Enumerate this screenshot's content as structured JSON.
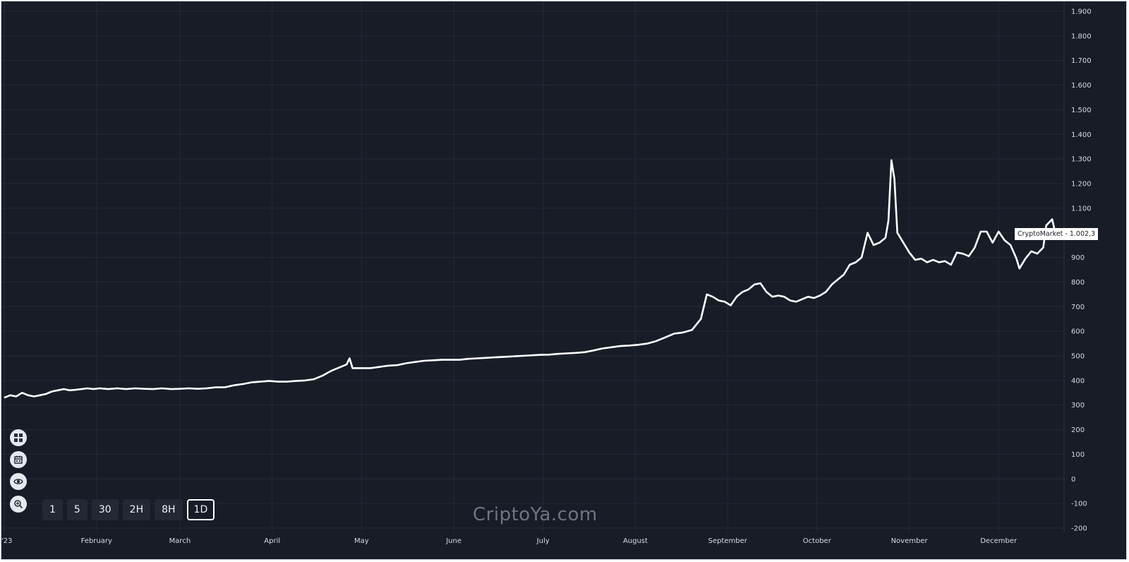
{
  "chart_data": {
    "type": "line",
    "title": "",
    "xlabel": "",
    "ylabel": "",
    "grid": true,
    "ylim": [
      -200,
      1900
    ],
    "y_ticks": [
      -200,
      -100,
      0,
      100,
      200,
      300,
      400,
      500,
      600,
      700,
      800,
      900,
      1000,
      1100,
      1200,
      1300,
      1400,
      1500,
      1600,
      1700,
      1800,
      1900
    ],
    "y_tick_labels": [
      "-200",
      "-100",
      "0",
      "100",
      "200",
      "300",
      "400",
      "500",
      "600",
      "700",
      "800",
      "900",
      "1.000",
      "1.100",
      "1.200",
      "1.300",
      "1.400",
      "1.500",
      "1.600",
      "1.700",
      "1.800",
      "1.900"
    ],
    "x_tick_labels": [
      "'23",
      "February",
      "March",
      "April",
      "May",
      "June",
      "July",
      "August",
      "September",
      "October",
      "November",
      "December"
    ],
    "x_tick_dates": [
      "2023-01-01",
      "2023-02-01",
      "2023-03-01",
      "2023-04-01",
      "2023-05-01",
      "2023-06-01",
      "2023-07-01",
      "2023-08-01",
      "2023-09-01",
      "2023-10-01",
      "2023-11-01",
      "2023-12-01"
    ],
    "series": [
      {
        "name": "CryptoMarket",
        "color": "#ffffff",
        "points": [
          [
            "2023-01-01",
            330
          ],
          [
            "2023-01-03",
            340
          ],
          [
            "2023-01-05",
            335
          ],
          [
            "2023-01-07",
            350
          ],
          [
            "2023-01-09",
            340
          ],
          [
            "2023-01-11",
            335
          ],
          [
            "2023-01-13",
            340
          ],
          [
            "2023-01-15",
            345
          ],
          [
            "2023-01-17",
            355
          ],
          [
            "2023-01-19",
            360
          ],
          [
            "2023-01-21",
            365
          ],
          [
            "2023-01-23",
            360
          ],
          [
            "2023-01-25",
            362
          ],
          [
            "2023-01-27",
            365
          ],
          [
            "2023-01-29",
            368
          ],
          [
            "2023-01-31",
            365
          ],
          [
            "2023-02-02",
            368
          ],
          [
            "2023-02-05",
            365
          ],
          [
            "2023-02-08",
            368
          ],
          [
            "2023-02-11",
            365
          ],
          [
            "2023-02-14",
            368
          ],
          [
            "2023-02-17",
            366
          ],
          [
            "2023-02-20",
            365
          ],
          [
            "2023-02-23",
            368
          ],
          [
            "2023-02-26",
            365
          ],
          [
            "2023-03-01",
            366
          ],
          [
            "2023-03-04",
            368
          ],
          [
            "2023-03-07",
            366
          ],
          [
            "2023-03-10",
            368
          ],
          [
            "2023-03-13",
            372
          ],
          [
            "2023-03-16",
            372
          ],
          [
            "2023-03-19",
            380
          ],
          [
            "2023-03-22",
            385
          ],
          [
            "2023-03-25",
            392
          ],
          [
            "2023-03-28",
            395
          ],
          [
            "2023-03-31",
            398
          ],
          [
            "2023-04-03",
            395
          ],
          [
            "2023-04-06",
            395
          ],
          [
            "2023-04-09",
            398
          ],
          [
            "2023-04-12",
            400
          ],
          [
            "2023-04-15",
            405
          ],
          [
            "2023-04-18",
            420
          ],
          [
            "2023-04-21",
            440
          ],
          [
            "2023-04-24",
            455
          ],
          [
            "2023-04-26",
            465
          ],
          [
            "2023-04-27",
            490
          ],
          [
            "2023-04-28",
            450
          ],
          [
            "2023-05-01",
            450
          ],
          [
            "2023-05-04",
            450
          ],
          [
            "2023-05-07",
            455
          ],
          [
            "2023-05-10",
            460
          ],
          [
            "2023-05-13",
            462
          ],
          [
            "2023-05-16",
            470
          ],
          [
            "2023-05-19",
            475
          ],
          [
            "2023-05-22",
            480
          ],
          [
            "2023-05-25",
            482
          ],
          [
            "2023-05-28",
            484
          ],
          [
            "2023-05-31",
            484
          ],
          [
            "2023-06-03",
            484
          ],
          [
            "2023-06-06",
            488
          ],
          [
            "2023-06-09",
            490
          ],
          [
            "2023-06-12",
            492
          ],
          [
            "2023-06-15",
            494
          ],
          [
            "2023-06-18",
            496
          ],
          [
            "2023-06-21",
            498
          ],
          [
            "2023-06-24",
            500
          ],
          [
            "2023-06-27",
            502
          ],
          [
            "2023-06-30",
            504
          ],
          [
            "2023-07-03",
            505
          ],
          [
            "2023-07-06",
            508
          ],
          [
            "2023-07-09",
            510
          ],
          [
            "2023-07-12",
            512
          ],
          [
            "2023-07-15",
            515
          ],
          [
            "2023-07-18",
            522
          ],
          [
            "2023-07-21",
            530
          ],
          [
            "2023-07-24",
            535
          ],
          [
            "2023-07-27",
            540
          ],
          [
            "2023-07-30",
            542
          ],
          [
            "2023-08-02",
            545
          ],
          [
            "2023-08-05",
            550
          ],
          [
            "2023-08-08",
            560
          ],
          [
            "2023-08-11",
            575
          ],
          [
            "2023-08-14",
            590
          ],
          [
            "2023-08-17",
            595
          ],
          [
            "2023-08-20",
            605
          ],
          [
            "2023-08-23",
            650
          ],
          [
            "2023-08-25",
            750
          ],
          [
            "2023-08-27",
            740
          ],
          [
            "2023-08-29",
            725
          ],
          [
            "2023-08-31",
            720
          ],
          [
            "2023-09-02",
            705
          ],
          [
            "2023-09-04",
            740
          ],
          [
            "2023-09-06",
            760
          ],
          [
            "2023-09-08",
            770
          ],
          [
            "2023-09-10",
            790
          ],
          [
            "2023-09-12",
            795
          ],
          [
            "2023-09-14",
            760
          ],
          [
            "2023-09-16",
            740
          ],
          [
            "2023-09-18",
            745
          ],
          [
            "2023-09-20",
            740
          ],
          [
            "2023-09-22",
            725
          ],
          [
            "2023-09-24",
            720
          ],
          [
            "2023-09-26",
            730
          ],
          [
            "2023-09-28",
            740
          ],
          [
            "2023-09-30",
            735
          ],
          [
            "2023-10-02",
            745
          ],
          [
            "2023-10-04",
            760
          ],
          [
            "2023-10-06",
            790
          ],
          [
            "2023-10-08",
            810
          ],
          [
            "2023-10-10",
            830
          ],
          [
            "2023-10-12",
            870
          ],
          [
            "2023-10-14",
            880
          ],
          [
            "2023-10-16",
            900
          ],
          [
            "2023-10-18",
            1000
          ],
          [
            "2023-10-20",
            950
          ],
          [
            "2023-10-22",
            960
          ],
          [
            "2023-10-24",
            980
          ],
          [
            "2023-10-25",
            1050
          ],
          [
            "2023-10-26",
            1295
          ],
          [
            "2023-10-27",
            1220
          ],
          [
            "2023-10-28",
            1000
          ],
          [
            "2023-10-30",
            960
          ],
          [
            "2023-11-01",
            920
          ],
          [
            "2023-11-03",
            890
          ],
          [
            "2023-11-05",
            895
          ],
          [
            "2023-11-07",
            880
          ],
          [
            "2023-11-09",
            890
          ],
          [
            "2023-11-11",
            880
          ],
          [
            "2023-11-13",
            885
          ],
          [
            "2023-11-15",
            870
          ],
          [
            "2023-11-17",
            920
          ],
          [
            "2023-11-19",
            915
          ],
          [
            "2023-11-21",
            905
          ],
          [
            "2023-11-23",
            940
          ],
          [
            "2023-11-25",
            1005
          ],
          [
            "2023-11-27",
            1005
          ],
          [
            "2023-11-29",
            960
          ],
          [
            "2023-12-01",
            1005
          ],
          [
            "2023-12-03",
            970
          ],
          [
            "2023-12-05",
            950
          ],
          [
            "2023-12-07",
            895
          ],
          [
            "2023-12-08",
            855
          ],
          [
            "2023-12-10",
            895
          ],
          [
            "2023-12-12",
            925
          ],
          [
            "2023-12-14",
            915
          ],
          [
            "2023-12-16",
            940
          ],
          [
            "2023-12-17",
            1030
          ],
          [
            "2023-12-19",
            1055
          ],
          [
            "2023-12-20",
            1002.3
          ]
        ]
      }
    ],
    "last_value_label": {
      "series_name": "CryptoMarket",
      "value": "1.002,3",
      "text": "CryptoMarket - 1.002,3"
    }
  },
  "controls": {
    "side_buttons": [
      {
        "id": "fit",
        "icon": "fit-screen-icon"
      },
      {
        "id": "calendar",
        "icon": "calendar-icon"
      },
      {
        "id": "visibility",
        "icon": "eye-icon"
      },
      {
        "id": "zoom",
        "icon": "zoom-in-icon"
      }
    ],
    "timeframes": [
      {
        "label": "1",
        "active": false
      },
      {
        "label": "5",
        "active": false
      },
      {
        "label": "30",
        "active": false
      },
      {
        "label": "2H",
        "active": false
      },
      {
        "label": "8H",
        "active": false
      },
      {
        "label": "1D",
        "active": true
      }
    ]
  },
  "watermark": "CriptoYa.com",
  "colors": {
    "background": "#181c27",
    "grid": "#262a36",
    "line": "#ffffff",
    "text": "#d7dbe3"
  }
}
